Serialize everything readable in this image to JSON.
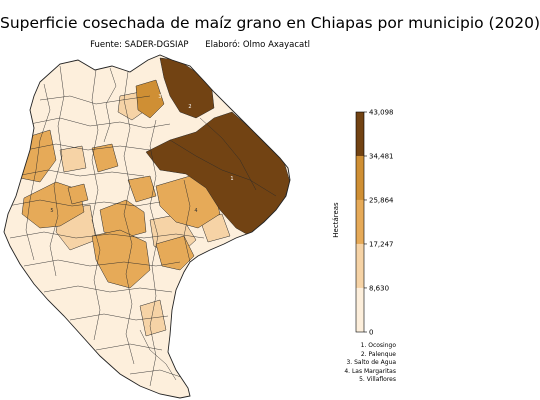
{
  "title": "Superficie cosechada de maíz grano en Chiapas por municipio (2020)",
  "subtitle": {
    "source": "Fuente: SADER-DGSIAP",
    "author": "Elaboró: Olmo Axayacatl"
  },
  "colorbar": {
    "label": "Hectáreas",
    "ticks": [
      "0",
      "8,630",
      "17,247",
      "25,864",
      "34,481",
      "43,098"
    ],
    "tick_values": [
      0,
      8630,
      17247,
      25864,
      34481,
      43098
    ],
    "colors": [
      "#fdefdc",
      "#f6d3a6",
      "#e6aa58",
      "#cf8f34",
      "#724313"
    ]
  },
  "legend": [
    "1. Ocosingo",
    "2. Palenque",
    "3. Salto de Agua",
    "4. Las Margaritas",
    "5. Villaflores"
  ],
  "map_labels": [
    "1",
    "2",
    "3",
    "4",
    "5"
  ]
}
